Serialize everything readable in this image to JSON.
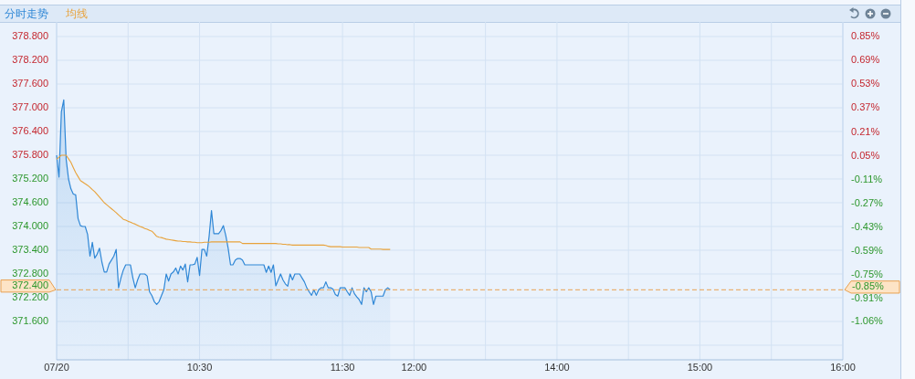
{
  "chart_data": {
    "type": "area",
    "legend": "top left",
    "grid": true,
    "categories": [
      "07/20",
      null,
      null,
      null,
      null,
      null,
      null,
      null,
      null,
      null,
      null,
      null,
      null,
      null,
      null,
      null,
      null,
      null,
      null,
      null,
      null,
      null,
      null,
      null,
      null,
      null,
      null,
      null,
      null,
      null,
      null,
      null,
      null,
      null,
      null,
      null,
      null,
      null,
      null,
      null,
      null,
      null,
      null,
      null,
      null,
      null,
      null,
      null,
      null,
      null,
      null,
      null,
      null,
      null,
      null,
      null,
      null,
      null,
      null,
      null,
      "10:30",
      null,
      null,
      null,
      null,
      null,
      null,
      null,
      null,
      null,
      null,
      null,
      null,
      null,
      null,
      null,
      null,
      null,
      null,
      null,
      null,
      null,
      null,
      null,
      null,
      null,
      null,
      null,
      null,
      null,
      null,
      null,
      null,
      null,
      null,
      null,
      null,
      null,
      null,
      null,
      null,
      null,
      null,
      null,
      null,
      null,
      null,
      null,
      null,
      null,
      null,
      null,
      null,
      null,
      null,
      null,
      null,
      null,
      null,
      null,
      "11:30",
      null,
      null,
      null,
      null,
      null,
      null,
      null,
      null,
      null,
      null,
      null,
      null,
      null,
      null,
      null,
      null,
      null,
      null,
      null,
      null,
      null,
      null,
      null,
      null,
      null,
      null,
      null,
      null,
      null,
      "12:00",
      null,
      null,
      null,
      null,
      null,
      null,
      null,
      null,
      null,
      null,
      null,
      null,
      null,
      null,
      null,
      null,
      null,
      null,
      null,
      null,
      null,
      null,
      null,
      null,
      null,
      null,
      null,
      null,
      null,
      null,
      null,
      null,
      null,
      null,
      null,
      null,
      null,
      null,
      null,
      null,
      null,
      null,
      null,
      null,
      null,
      null,
      null,
      null,
      null,
      null,
      null,
      null,
      null,
      null,
      null,
      null,
      null,
      null,
      null,
      "14:00",
      null,
      null,
      null,
      null,
      null,
      null,
      null,
      null,
      null,
      null,
      null,
      null,
      null,
      null,
      null,
      null,
      null,
      null,
      null,
      null,
      null,
      null,
      null,
      null,
      null,
      null,
      null,
      null,
      null,
      null,
      null,
      null,
      null,
      null,
      null,
      null,
      null,
      null,
      null,
      null,
      null,
      null,
      null,
      null,
      null,
      null,
      null,
      null,
      null,
      null,
      null,
      null,
      null,
      null,
      null,
      null,
      null,
      null,
      null,
      "15:00",
      null,
      null,
      null,
      null,
      null,
      null,
      null,
      null,
      null,
      null,
      null,
      null,
      null,
      null,
      null,
      null,
      null,
      null,
      null,
      null,
      null,
      null,
      null,
      null,
      null,
      null,
      null,
      null,
      null,
      null,
      null,
      null,
      null,
      null,
      null,
      null,
      null,
      null,
      null,
      null,
      null,
      null,
      null,
      null,
      null,
      null,
      null,
      null,
      null,
      null,
      null,
      null,
      null,
      null,
      null,
      null,
      null,
      null,
      null,
      "16:00"
    ],
    "ylim": [
      370.63,
      379.17
    ],
    "yticks": [
      {
        "value": 378.8,
        "label": "378.800"
      },
      {
        "value": 378.2,
        "label": "378.200"
      },
      {
        "value": 377.6,
        "label": "377.600"
      },
      {
        "value": 377.0,
        "label": "377.000"
      },
      {
        "value": 376.4,
        "label": "376.400"
      },
      {
        "value": 375.8,
        "label": "375.800"
      },
      {
        "value": 375.2,
        "label": "375.200"
      },
      {
        "value": 374.6,
        "label": "374.600"
      },
      {
        "value": 374.0,
        "label": "374.000"
      },
      {
        "value": 373.4,
        "label": "373.400"
      },
      {
        "value": 372.8,
        "label": "372.800"
      },
      {
        "value": 372.2,
        "label": "372.200"
      },
      {
        "value": 371.6,
        "label": "371.600"
      },
      {
        "value": 371.0,
        "label": null
      }
    ],
    "y2lim": [
      -1.32,
      0.95
    ],
    "y2ticks": [
      {
        "value": 0.85,
        "label": "0.85%"
      },
      {
        "value": 0.69,
        "label": "0.69%"
      },
      {
        "value": 0.53,
        "label": "0.53%"
      },
      {
        "value": 0.37,
        "label": "0.37%"
      },
      {
        "value": 0.21,
        "label": "0.21%"
      },
      {
        "value": 0.05,
        "label": "0.05%"
      },
      {
        "value": -0.11,
        "label": "-0.11%"
      },
      {
        "value": -0.27,
        "label": "-0.27%"
      },
      {
        "value": -0.43,
        "label": "-0.43%"
      },
      {
        "value": -0.59,
        "label": "-0.59%"
      },
      {
        "value": -0.75,
        "label": "-0.75%"
      },
      {
        "value": -0.91,
        "label": "-0.91%"
      },
      {
        "value": -1.06,
        "label": "-1.06%"
      }
    ],
    "series": [
      {
        "name": "分时走势",
        "color": "#2f87d6",
        "values": [
          375.8,
          375.25,
          376.9,
          377.2,
          375.7,
          375.2,
          374.95,
          374.82,
          374.8,
          374.2,
          374.02,
          374.0,
          374.0,
          373.8,
          373.25,
          373.6,
          373.2,
          373.3,
          373.45,
          373.1,
          372.85,
          372.85,
          373.05,
          373.15,
          373.25,
          373.42,
          372.45,
          372.7,
          372.9,
          373.03,
          373.03,
          373.03,
          372.7,
          372.45,
          372.65,
          372.8,
          372.8,
          372.8,
          372.75,
          372.35,
          372.25,
          372.1,
          372.03,
          372.1,
          372.25,
          372.4,
          372.8,
          372.62,
          372.8,
          372.85,
          372.95,
          372.8,
          373.0,
          372.9,
          373.05,
          372.6,
          373.03,
          373.03,
          373.05,
          373.22,
          372.76,
          373.42,
          373.42,
          373.25,
          373.75,
          374.4,
          373.82,
          373.82,
          373.82,
          373.9,
          374.02,
          373.77,
          373.45,
          373.03,
          373.03,
          373.15,
          373.19,
          373.19,
          373.15,
          373.03,
          373.03,
          373.03,
          373.03,
          373.03,
          373.03,
          373.03,
          373.03,
          373.03,
          372.84,
          373.0,
          372.84,
          373.03,
          372.5,
          372.65,
          372.8,
          372.65,
          372.55,
          372.49,
          372.8,
          372.65,
          372.8,
          372.8,
          372.8,
          372.7,
          372.6,
          372.45,
          372.35,
          372.26,
          372.4,
          372.26,
          372.4,
          372.45,
          372.45,
          372.6,
          372.45,
          372.45,
          372.42,
          372.28,
          372.24,
          372.45,
          372.45,
          372.45,
          372.35,
          372.26,
          372.45,
          372.3,
          372.22,
          372.15,
          372.03,
          372.45,
          372.35,
          372.45,
          372.35,
          372.03,
          372.24,
          372.24,
          372.24,
          372.24,
          372.4,
          372.45,
          372.4,
          null,
          null,
          null,
          null,
          null,
          null,
          null,
          null,
          null,
          null,
          null,
          null,
          null,
          null,
          null,
          null,
          null,
          null,
          null,
          null,
          null,
          null,
          null,
          null,
          null,
          null,
          null,
          null,
          null,
          null,
          null,
          null,
          null,
          null,
          null,
          null,
          null,
          null,
          null,
          null,
          null,
          null,
          null,
          null,
          null,
          null,
          null,
          null,
          null,
          null,
          null,
          null,
          null,
          null,
          null,
          null,
          null,
          null,
          null,
          null,
          null,
          null,
          null,
          null,
          null,
          null,
          null,
          null,
          null,
          null,
          null,
          null,
          null,
          null,
          null,
          null,
          null,
          null,
          null,
          null,
          null,
          null,
          null,
          null,
          null,
          null,
          null,
          null,
          null,
          null,
          null,
          null,
          null,
          null,
          null,
          null,
          null,
          null,
          null,
          null,
          null,
          null,
          null,
          null,
          null,
          null,
          null,
          null,
          null,
          null,
          null,
          null,
          null,
          null,
          null,
          null,
          null,
          null,
          null,
          null,
          null,
          null,
          null,
          null,
          null,
          null,
          null,
          null,
          null,
          null,
          null,
          null,
          null,
          null,
          null,
          null,
          null,
          null,
          null,
          null,
          null,
          null,
          null,
          null,
          null,
          null,
          null,
          null,
          null,
          null,
          null,
          null,
          null,
          null,
          null,
          null,
          null,
          null,
          null,
          null,
          null,
          null,
          null,
          null,
          null,
          null,
          null,
          null,
          null,
          null,
          null,
          null,
          null,
          null,
          null,
          null,
          null,
          null,
          null,
          null,
          null,
          null,
          null,
          null,
          null,
          null,
          null,
          null,
          null,
          null
        ]
      },
      {
        "name": "均线",
        "type": "line",
        "color": "#e8a23a",
        "values": [
          375.7,
          375.75,
          375.8,
          375.8,
          375.8,
          375.71,
          375.62,
          375.49,
          375.36,
          375.26,
          375.16,
          375.12,
          375.08,
          375.04,
          374.99,
          374.93,
          374.88,
          374.81,
          374.74,
          374.67,
          374.6,
          374.55,
          374.5,
          374.45,
          374.4,
          374.35,
          374.29,
          374.24,
          374.18,
          374.16,
          374.13,
          374.11,
          374.08,
          374.06,
          374.03,
          374.0,
          373.98,
          373.95,
          373.93,
          373.9,
          373.88,
          373.82,
          373.75,
          373.73,
          373.72,
          373.7,
          373.68,
          373.67,
          373.66,
          373.65,
          373.64,
          373.63,
          373.63,
          373.62,
          373.62,
          373.61,
          373.61,
          373.6,
          373.6,
          373.59,
          373.59,
          373.59,
          373.6,
          373.6,
          373.6,
          373.61,
          373.61,
          373.61,
          373.61,
          373.61,
          373.61,
          373.61,
          373.61,
          373.61,
          373.61,
          373.61,
          373.61,
          373.61,
          373.57,
          373.57,
          373.57,
          373.57,
          373.57,
          373.57,
          373.57,
          373.57,
          373.57,
          373.57,
          373.57,
          373.57,
          373.57,
          373.57,
          373.57,
          373.56,
          373.56,
          373.55,
          373.55,
          373.54,
          373.54,
          373.53,
          373.53,
          373.53,
          373.53,
          373.53,
          373.53,
          373.53,
          373.53,
          373.53,
          373.53,
          373.53,
          373.53,
          373.53,
          373.53,
          373.52,
          373.5,
          373.49,
          373.49,
          373.49,
          373.49,
          373.49,
          373.48,
          373.48,
          373.48,
          373.48,
          373.48,
          373.48,
          373.48,
          373.47,
          373.47,
          373.47,
          373.47,
          373.47,
          373.43,
          373.43,
          373.43,
          373.43,
          373.43,
          373.42,
          373.42,
          373.42,
          373.42,
          null,
          null,
          null,
          null,
          null,
          null,
          null,
          null,
          null,
          null,
          null,
          null,
          null,
          null,
          null,
          null,
          null,
          null,
          null,
          null,
          null,
          null,
          null,
          null,
          null,
          null,
          null,
          null,
          null,
          null,
          null,
          null,
          null,
          null,
          null,
          null,
          null,
          null,
          null,
          null,
          null,
          null,
          null,
          null,
          null,
          null,
          null,
          null,
          null,
          null,
          null,
          null,
          null,
          null,
          null,
          null,
          null,
          null,
          null,
          null,
          null,
          null,
          null,
          null,
          null,
          null,
          null,
          null,
          null,
          null,
          null,
          null,
          null,
          null,
          null,
          null,
          null,
          null,
          null,
          null,
          null,
          null,
          null,
          null,
          null,
          null,
          null,
          null,
          null,
          null,
          null,
          null,
          null,
          null,
          null,
          null,
          null,
          null,
          null,
          null,
          null,
          null,
          null,
          null,
          null,
          null,
          null,
          null,
          null,
          null,
          null,
          null,
          null,
          null,
          null,
          null,
          null,
          null,
          null,
          null,
          null,
          null,
          null,
          null,
          null,
          null,
          null,
          null,
          null,
          null,
          null,
          null,
          null,
          null,
          null,
          null,
          null,
          null,
          null,
          null,
          null,
          null,
          null,
          null,
          null,
          null,
          null,
          null,
          null,
          null,
          null,
          null,
          null,
          null,
          null,
          null,
          null,
          null,
          null,
          null,
          null,
          null,
          null,
          null,
          null,
          null,
          null,
          null,
          null,
          null,
          null,
          null,
          null,
          null,
          null,
          null,
          null,
          null,
          null,
          null,
          null,
          null,
          null,
          null,
          null,
          null,
          null,
          null,
          null,
          null
        ]
      }
    ],
    "ref_lines": [
      {
        "axis": "y",
        "value": 372.4,
        "label": "372.400",
        "color": "#e9a150",
        "line_style": "dashed"
      }
    ],
    "annotations": [
      "-0.85%"
    ]
  }
}
